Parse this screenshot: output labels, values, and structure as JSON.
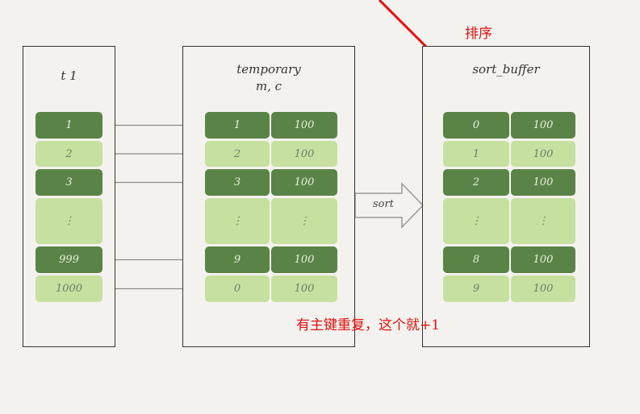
{
  "annotations": {
    "sort_note": "排序",
    "dup_note": "有主键重复，这个就+1"
  },
  "panels": {
    "t1": {
      "title": "t 1",
      "rows": [
        "1",
        "2",
        "3",
        "⋮",
        "999",
        "1000"
      ]
    },
    "temporary": {
      "title": "temporary\nm, c",
      "rows": [
        [
          "1",
          "100"
        ],
        [
          "2",
          "100"
        ],
        [
          "3",
          "100"
        ],
        [
          "⋮",
          "⋮"
        ],
        [
          "9",
          "100"
        ],
        [
          "0",
          "100"
        ]
      ]
    },
    "sort_buffer": {
      "title": "sort_buffer",
      "rows": [
        [
          "0",
          "100"
        ],
        [
          "1",
          "100"
        ],
        [
          "2",
          "100"
        ],
        [
          "⋮",
          "⋮"
        ],
        [
          "8",
          "100"
        ],
        [
          "9",
          "100"
        ]
      ]
    }
  },
  "sort_arrow_label": "sort",
  "colors": {
    "dark_green": "#5a8447",
    "light_green": "#c6e0a0",
    "red": "#e01010",
    "arrow_gray": "#8a8a8a"
  }
}
